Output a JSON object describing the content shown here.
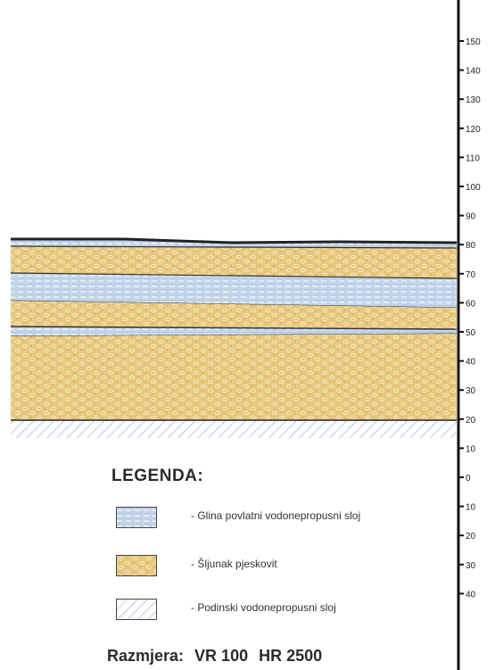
{
  "axis": {
    "ticks": [
      "150",
      "140",
      "130",
      "120",
      "110",
      "100",
      "90",
      "80",
      "70",
      "60",
      "50",
      "40",
      "30",
      "20",
      "10",
      "0",
      "10",
      "20",
      "30",
      "40"
    ]
  },
  "legend": {
    "title": "LEGENDA:",
    "items": [
      {
        "id": "clay",
        "label": "- Glina povlatni vodonepropusni sloj",
        "color": "#b9cfe6"
      },
      {
        "id": "gravel",
        "label": "- Šljunak pjeskovit",
        "color": "#e6c47c"
      },
      {
        "id": "bedrock",
        "label": "- Podinski vodonepropusni sloj",
        "color": "#7fa3c9"
      }
    ]
  },
  "scale": {
    "prefix": "Razmjera:",
    "vertical": "VR 100",
    "horizontal": "HR 2500"
  }
}
